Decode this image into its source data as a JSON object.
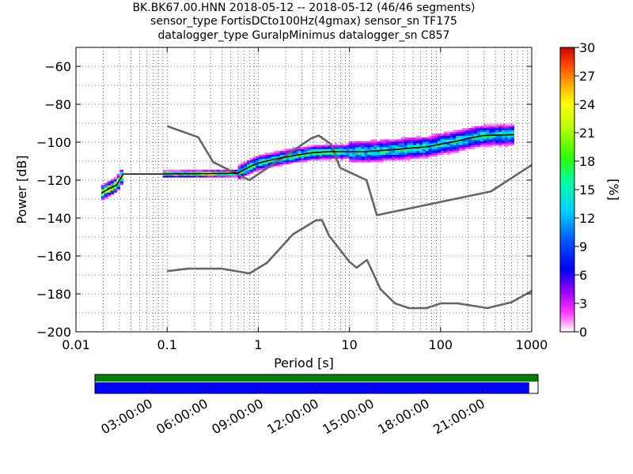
{
  "chart_data": [
    {
      "type": "heatmap",
      "title_lines": [
        "BK.BK67.00.HNN   2018-05-12 -- 2018-05-12  (46/46 segments)",
        "sensor_type FortisDCto100Hz(4gmax) sensor_sn TF175",
        "datalogger_type GuralpMinimus datalogger_sn C857"
      ],
      "xlabel": "Period [s]",
      "ylabel": "Power [dB]",
      "x_scale": "log",
      "xlim": [
        0.01,
        1000
      ],
      "ylim": [
        -200,
        -50
      ],
      "x_ticks": [
        "0.01",
        "0.1",
        "1",
        "10",
        "100",
        "1000"
      ],
      "y_ticks": [
        "−200",
        "−180",
        "−160",
        "−140",
        "−120",
        "−100",
        "−80",
        "−60"
      ],
      "grid": true,
      "colorbar": {
        "label": "[%]",
        "range": [
          0,
          30
        ],
        "ticks": [
          "0",
          "3",
          "6",
          "9",
          "12",
          "15",
          "18",
          "21",
          "24",
          "27",
          "30"
        ]
      },
      "series": [
        {
          "role": "noise-model-high",
          "color": "#666666",
          "points": [
            [
              0.1,
              -91.5
            ],
            [
              0.22,
              -97.4
            ],
            [
              0.32,
              -110.5
            ],
            [
              0.8,
              -120
            ],
            [
              3.8,
              -98.0
            ],
            [
              4.6,
              -96.5
            ],
            [
              6.3,
              -101.0
            ],
            [
              7.9,
              -113.5
            ],
            [
              15.4,
              -120.0
            ],
            [
              20,
              -138.5
            ],
            [
              354.8,
              -126.0
            ],
            [
              1000,
              -112.0
            ]
          ]
        },
        {
          "role": "noise-model-low",
          "color": "#666666",
          "points": [
            [
              0.1,
              -168.0
            ],
            [
              0.17,
              -166.7
            ],
            [
              0.4,
              -166.7
            ],
            [
              0.8,
              -169.2
            ],
            [
              1.24,
              -163.7
            ],
            [
              2.4,
              -148.6
            ],
            [
              4.3,
              -141.2
            ],
            [
              5.0,
              -141.1
            ],
            [
              6.0,
              -149.4
            ],
            [
              10.0,
              -163.1
            ],
            [
              12.0,
              -166.2
            ],
            [
              15.6,
              -162.1
            ],
            [
              21.9,
              -177.5
            ],
            [
              31.6,
              -185.0
            ],
            [
              45.0,
              -187.5
            ],
            [
              70.0,
              -187.5
            ],
            [
              101.0,
              -185.0
            ],
            [
              154.0,
              -185.0
            ],
            [
              328.0,
              -187.5
            ],
            [
              600.0,
              -184.4
            ],
            [
              1000,
              -178.5
            ]
          ]
        },
        {
          "role": "mode",
          "color": "#000000",
          "points": [
            [
              0.019,
              -127
            ],
            [
              0.022,
              -125
            ],
            [
              0.028,
              -122.5
            ],
            [
              0.033,
              -116.8
            ],
            [
              0.1,
              -116.8
            ],
            [
              0.4,
              -116.5
            ],
            [
              0.6,
              -116.3
            ],
            [
              0.8,
              -113
            ],
            [
              1,
              -111
            ],
            [
              1.5,
              -109
            ],
            [
              2.5,
              -107
            ],
            [
              4,
              -105.5
            ],
            [
              6,
              -105
            ],
            [
              10,
              -105
            ],
            [
              15,
              -105
            ],
            [
              20,
              -104.5
            ],
            [
              30,
              -104
            ],
            [
              50,
              -103
            ],
            [
              70,
              -102.5
            ],
            [
              100,
              -101
            ],
            [
              150,
              -99.5
            ],
            [
              200,
              -98
            ],
            [
              300,
              -96.5
            ],
            [
              640,
              -96
            ]
          ]
        }
      ],
      "density_bands": [
        {
          "period_range": [
            0.019,
            0.033
          ],
          "db_range": [
            -128,
            -116
          ],
          "max_percent": 30
        },
        {
          "period_range": [
            0.09,
            0.6
          ],
          "db_range": [
            -118,
            -115
          ],
          "max_percent": 28
        },
        {
          "period_range": [
            0.6,
            10
          ],
          "db_range": [
            -115,
            -103
          ],
          "max_percent": 21
        },
        {
          "period_range": [
            10,
            640
          ],
          "db_range": [
            -110,
            -90
          ],
          "max_percent": 19
        }
      ]
    },
    {
      "type": "timeline",
      "tick_labels": [
        "03:00:00",
        "06:00:00",
        "09:00:00",
        "12:00:00",
        "15:00:00",
        "18:00:00",
        "21:00:00"
      ],
      "top_bar_color": "#008000",
      "bottom_bar_color": "#0000ff",
      "data_coverage_fraction": 0.98
    }
  ]
}
